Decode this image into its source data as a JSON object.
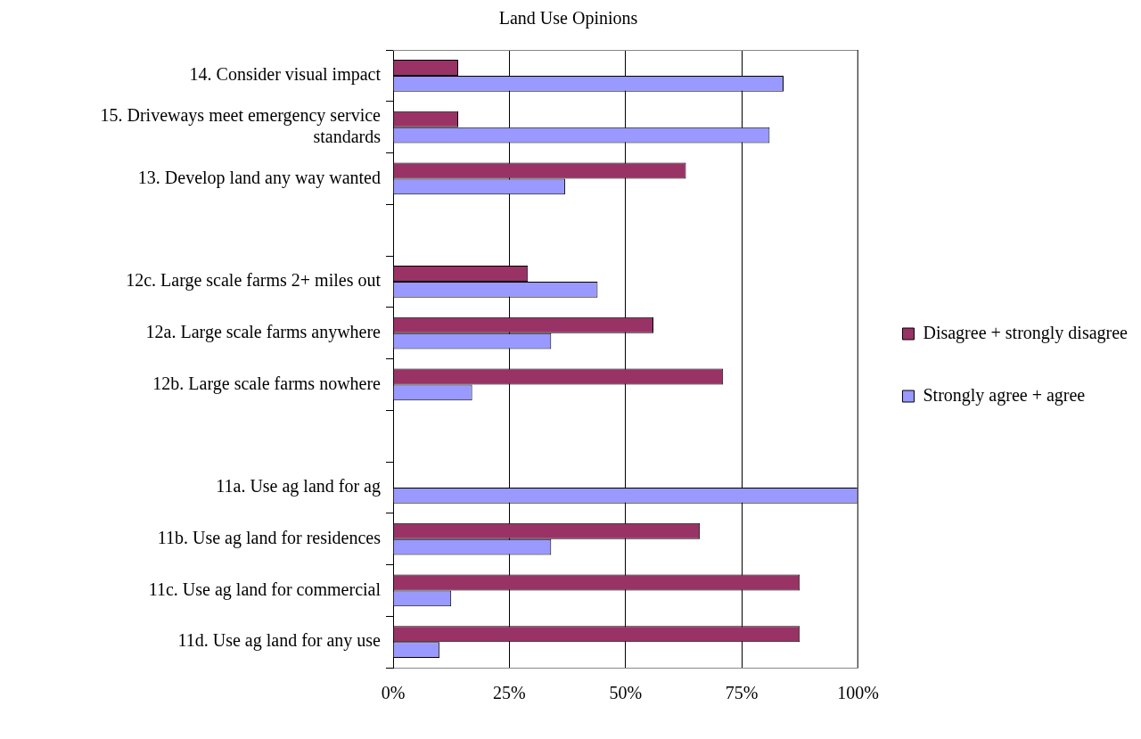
{
  "chart_data": {
    "type": "bar",
    "title": "Land Use Opinions",
    "orientation": "horizontal",
    "categories": [
      "14. Consider visual impact",
      "15. Driveways meet emergency service standards",
      "13. Develop land any way wanted",
      null,
      "12c. Large scale farms 2+ miles out",
      "12a. Large scale farms anywhere",
      "12b. Large scale farms nowhere",
      null,
      "11a. Use ag land for ag",
      "11b. Use ag land for residences",
      "11c. Use ag land for commercial",
      "11d. Use ag land for any use"
    ],
    "series": [
      {
        "name": "Disagree + strongly disagree",
        "color": "#993366",
        "values": [
          14,
          14,
          63,
          null,
          29,
          56,
          71,
          null,
          0,
          66,
          87.5,
          87.5
        ]
      },
      {
        "name": "Strongly agree + agree",
        "color": "#9999ff",
        "values": [
          84,
          81,
          37,
          null,
          44,
          34,
          17,
          null,
          100,
          34,
          12.5,
          10
        ]
      }
    ],
    "xlim": [
      0,
      100
    ],
    "xticks": [
      {
        "value": 0,
        "label": "0%"
      },
      {
        "value": 25,
        "label": "25%"
      },
      {
        "value": 50,
        "label": "50%"
      },
      {
        "value": 75,
        "label": "75%"
      },
      {
        "value": 100,
        "label": "100%"
      }
    ],
    "grid": "x",
    "legend": "right"
  }
}
